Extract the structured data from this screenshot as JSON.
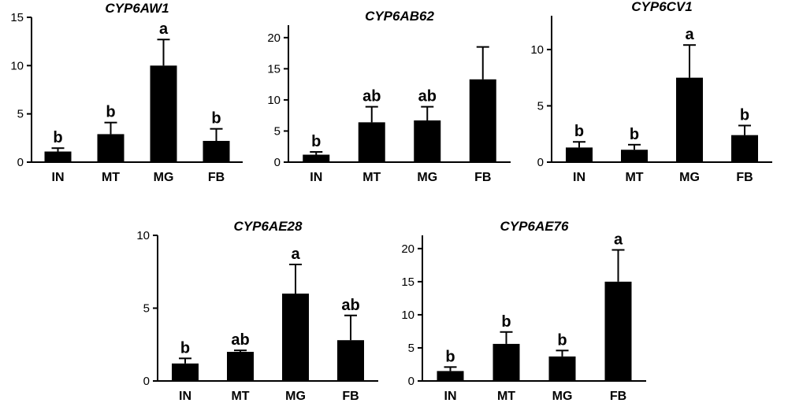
{
  "colors": {
    "bar": "#000000",
    "axis": "#000000",
    "background": "#ffffff"
  },
  "chart_data": [
    {
      "type": "bar",
      "title": "CYP6AW1",
      "categories": [
        "IN",
        "MT",
        "MG",
        "FB"
      ],
      "values": [
        1.1,
        2.9,
        10.0,
        2.2
      ],
      "errors": [
        0.35,
        1.2,
        2.7,
        1.25
      ],
      "labels": [
        "b",
        "b",
        "a",
        "b"
      ],
      "ylim": [
        0,
        15
      ],
      "yticks": [
        0,
        5,
        10,
        15
      ],
      "grid": false,
      "xlabel": "",
      "ylabel": ""
    },
    {
      "type": "bar",
      "title": "CYP6AB62",
      "categories": [
        "IN",
        "MT",
        "MG",
        "FB"
      ],
      "values": [
        1.2,
        6.4,
        6.7,
        13.3
      ],
      "errors": [
        0.45,
        2.5,
        2.2,
        5.2
      ],
      "labels": [
        "b",
        "ab",
        "ab",
        ""
      ],
      "ylim": [
        0,
        22
      ],
      "yticks": [
        0,
        5,
        10,
        15,
        20
      ],
      "grid": false,
      "xlabel": "",
      "ylabel": ""
    },
    {
      "type": "bar",
      "title": "CYP6CV1",
      "categories": [
        "IN",
        "MT",
        "MG",
        "FB"
      ],
      "values": [
        1.3,
        1.1,
        7.5,
        2.4
      ],
      "errors": [
        0.5,
        0.45,
        2.9,
        0.85
      ],
      "labels": [
        "b",
        "b",
        "a",
        "b"
      ],
      "ylim": [
        0,
        13
      ],
      "yticks": [
        0,
        5,
        10
      ],
      "grid": false,
      "xlabel": "",
      "ylabel": ""
    },
    {
      "type": "bar",
      "title": "CYP6AE28",
      "categories": [
        "IN",
        "MT",
        "MG",
        "FB"
      ],
      "values": [
        1.2,
        2.0,
        6.0,
        2.8
      ],
      "errors": [
        0.35,
        0.1,
        2.0,
        1.7
      ],
      "labels": [
        "b",
        "ab",
        "a",
        "ab"
      ],
      "ylim": [
        0,
        10
      ],
      "yticks": [
        0,
        5,
        10
      ],
      "grid": false,
      "xlabel": "",
      "ylabel": ""
    },
    {
      "type": "bar",
      "title": "CYP6AE76",
      "categories": [
        "IN",
        "MT",
        "MG",
        "FB"
      ],
      "values": [
        1.5,
        5.6,
        3.7,
        15.0
      ],
      "errors": [
        0.6,
        1.8,
        0.9,
        4.8
      ],
      "labels": [
        "b",
        "b",
        "b",
        "a"
      ],
      "ylim": [
        0,
        22
      ],
      "yticks": [
        0,
        5,
        10,
        15,
        20
      ],
      "grid": false,
      "xlabel": "",
      "ylabel": ""
    }
  ]
}
